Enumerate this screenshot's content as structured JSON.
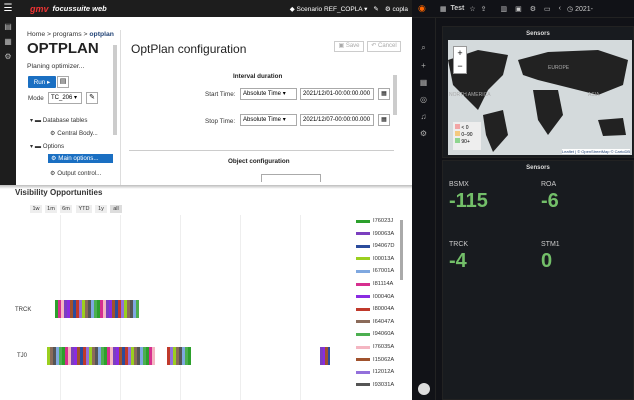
{
  "app": {
    "brand": "gmv",
    "suite": "focussuite web",
    "scenario_label": "Scenario",
    "scenario_value": "REF_COPLA",
    "user": "copla"
  },
  "breadcrumb": {
    "home": "Home",
    "sep1": ">",
    "programs": "programs",
    "sep2": ">",
    "current": "optplan"
  },
  "program": {
    "title": "OPTPLAN",
    "status": "Planing optimizer...",
    "run_label": "Run",
    "mode_label": "Mode",
    "mode_value": "TC_206"
  },
  "tree": [
    {
      "label": "Database tables",
      "icon": "folder-icon",
      "level": 0
    },
    {
      "label": "Central Body...",
      "icon": "gear-icon",
      "level": 1
    },
    {
      "label": "Options",
      "icon": "folder-icon",
      "level": 0
    },
    {
      "label": "Main options...",
      "icon": "gear-icon",
      "level": 1,
      "selected": true
    },
    {
      "label": "Output control...",
      "icon": "gear-icon",
      "level": 1
    }
  ],
  "config": {
    "title": "OptPlan configuration",
    "save": "Save",
    "cancel": "Cancel",
    "interval_header": "Interval duration",
    "start_label": "Start Time:",
    "start_mode": "Absolute Time",
    "start_value": "2021/12/01-00:00:00.000",
    "stop_label": "Stop Time:",
    "stop_mode": "Absolute Time",
    "stop_value": "2021/12/07-00:00:00.000",
    "object_header": "Object configuration"
  },
  "visibility": {
    "title": "Visibility Opportunities",
    "zoom": [
      "1w",
      "1m",
      "6m",
      "YTD",
      "1y",
      "all"
    ],
    "rows": [
      "TRCK",
      "TJ0"
    ],
    "legend": [
      {
        "label": "I76023J",
        "color": "#2ca02c"
      },
      {
        "label": "I90063A",
        "color": "#7b3fbf"
      },
      {
        "label": "I94067D",
        "color": "#2b4c9c"
      },
      {
        "label": "I00013A",
        "color": "#9bcf1f"
      },
      {
        "label": "I67001A",
        "color": "#7fa8e0"
      },
      {
        "label": "I81114A",
        "color": "#d62f8f"
      },
      {
        "label": "I00040A",
        "color": "#8a2be2"
      },
      {
        "label": "I80004A",
        "color": "#c0392b"
      },
      {
        "label": "I64047A",
        "color": "#8b6b5a"
      },
      {
        "label": "I94060A",
        "color": "#4caf50"
      },
      {
        "label": "I76035A",
        "color": "#f4b6c2"
      },
      {
        "label": "I15062A",
        "color": "#a0522d"
      },
      {
        "label": "I12012A",
        "color": "#9370db"
      },
      {
        "label": "I93031A",
        "color": "#555555"
      }
    ]
  },
  "grafana": {
    "dashboard": "Test",
    "time": "2021-",
    "map_panel_title": "Sensors",
    "map_legend": [
      "< 0",
      "0–90",
      "90+"
    ],
    "map_legend_colors": [
      "#f2a5a5",
      "#f4c97f",
      "#8fd58f"
    ],
    "map_labels": {
      "north_america": "NORTH AMERICA",
      "asia": "ASIA",
      "europe": "EUROPE",
      "attribution": "Leaflet | © OpenStreetMap © CartoDB"
    },
    "stat_panel_title": "Sensors",
    "stats": [
      {
        "name": "BSMX",
        "value": "-115"
      },
      {
        "name": "ROA",
        "value": "-6"
      },
      {
        "name": "TRCK",
        "value": "-4"
      },
      {
        "name": "STM1",
        "value": "0"
      }
    ]
  }
}
